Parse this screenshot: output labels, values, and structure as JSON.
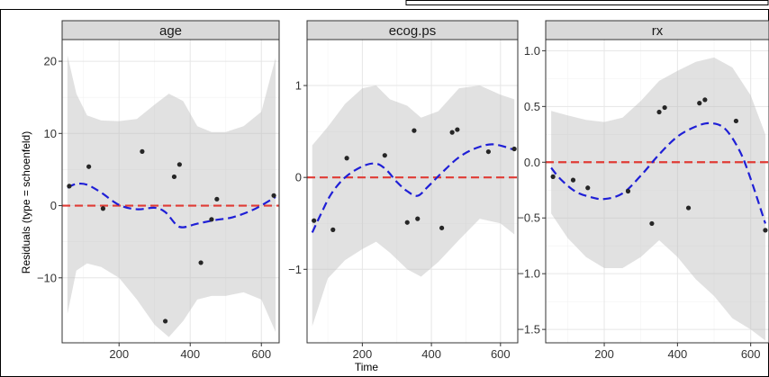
{
  "chart_data": {
    "type": "scatter",
    "ylabel": "Residuals (type = schoenfeld)",
    "xlabel": "Time",
    "xlim": [
      40,
      650
    ],
    "xticks": [
      200,
      400,
      600
    ],
    "panels": [
      {
        "title": "age",
        "ylim": [
          -19,
          23
        ],
        "yticks": [
          -10,
          0,
          10,
          20
        ],
        "ytick_labels": [
          "−10",
          "0",
          "10",
          "20"
        ],
        "points": [
          {
            "x": 60,
            "y": 2.7
          },
          {
            "x": 115,
            "y": 5.4
          },
          {
            "x": 155,
            "y": -0.4
          },
          {
            "x": 265,
            "y": 7.5
          },
          {
            "x": 330,
            "y": -16
          },
          {
            "x": 355,
            "y": 4.0
          },
          {
            "x": 370,
            "y": 5.7
          },
          {
            "x": 430,
            "y": -7.9
          },
          {
            "x": 460,
            "y": -1.9
          },
          {
            "x": 475,
            "y": 0.9
          },
          {
            "x": 635,
            "y": 1.4
          }
        ],
        "smooth": [
          {
            "x": 55,
            "y": 2.5
          },
          {
            "x": 80,
            "y": 3.0
          },
          {
            "x": 110,
            "y": 2.9
          },
          {
            "x": 150,
            "y": 1.8
          },
          {
            "x": 200,
            "y": 0.1
          },
          {
            "x": 250,
            "y": -0.5
          },
          {
            "x": 300,
            "y": -0.3
          },
          {
            "x": 330,
            "y": -0.9
          },
          {
            "x": 360,
            "y": -2.6
          },
          {
            "x": 380,
            "y": -3.0
          },
          {
            "x": 420,
            "y": -2.5
          },
          {
            "x": 470,
            "y": -2.0
          },
          {
            "x": 520,
            "y": -1.6
          },
          {
            "x": 580,
            "y": -0.5
          },
          {
            "x": 640,
            "y": 1.2
          }
        ],
        "band_upper": [
          {
            "x": 55,
            "y": 20.8
          },
          {
            "x": 80,
            "y": 15.5
          },
          {
            "x": 110,
            "y": 12.5
          },
          {
            "x": 150,
            "y": 11.8
          },
          {
            "x": 200,
            "y": 11.7
          },
          {
            "x": 250,
            "y": 12.0
          },
          {
            "x": 300,
            "y": 14.0
          },
          {
            "x": 340,
            "y": 15.5
          },
          {
            "x": 380,
            "y": 14.5
          },
          {
            "x": 420,
            "y": 11.0
          },
          {
            "x": 460,
            "y": 10.2
          },
          {
            "x": 500,
            "y": 10.2
          },
          {
            "x": 550,
            "y": 11.0
          },
          {
            "x": 600,
            "y": 13.0
          },
          {
            "x": 640,
            "y": 20.5
          }
        ],
        "band_lower": [
          {
            "x": 55,
            "y": -15.0
          },
          {
            "x": 80,
            "y": -9.0
          },
          {
            "x": 110,
            "y": -8.0
          },
          {
            "x": 150,
            "y": -8.5
          },
          {
            "x": 200,
            "y": -10.0
          },
          {
            "x": 250,
            "y": -13.0
          },
          {
            "x": 300,
            "y": -16.5
          },
          {
            "x": 340,
            "y": -18.2
          },
          {
            "x": 380,
            "y": -16.0
          },
          {
            "x": 420,
            "y": -13.0
          },
          {
            "x": 460,
            "y": -12.5
          },
          {
            "x": 500,
            "y": -12.5
          },
          {
            "x": 550,
            "y": -12.0
          },
          {
            "x": 600,
            "y": -13.0
          },
          {
            "x": 640,
            "y": -17.5
          }
        ]
      },
      {
        "title": "ecog.ps",
        "ylim": [
          -1.8,
          1.5
        ],
        "yticks": [
          -1,
          0,
          1
        ],
        "ytick_labels": [
          "−1",
          "0",
          "1"
        ],
        "points": [
          {
            "x": 60,
            "y": -0.47
          },
          {
            "x": 115,
            "y": -0.57
          },
          {
            "x": 155,
            "y": 0.21
          },
          {
            "x": 265,
            "y": 0.24
          },
          {
            "x": 330,
            "y": -0.49
          },
          {
            "x": 350,
            "y": 0.51
          },
          {
            "x": 360,
            "y": -0.45
          },
          {
            "x": 430,
            "y": -0.55
          },
          {
            "x": 460,
            "y": 0.49
          },
          {
            "x": 475,
            "y": 0.52
          },
          {
            "x": 565,
            "y": 0.28
          },
          {
            "x": 640,
            "y": 0.31
          }
        ],
        "smooth": [
          {
            "x": 55,
            "y": -0.6
          },
          {
            "x": 80,
            "y": -0.4
          },
          {
            "x": 110,
            "y": -0.18
          },
          {
            "x": 150,
            "y": 0.0
          },
          {
            "x": 200,
            "y": 0.12
          },
          {
            "x": 240,
            "y": 0.15
          },
          {
            "x": 270,
            "y": 0.08
          },
          {
            "x": 300,
            "y": -0.05
          },
          {
            "x": 330,
            "y": -0.15
          },
          {
            "x": 360,
            "y": -0.2
          },
          {
            "x": 390,
            "y": -0.1
          },
          {
            "x": 430,
            "y": 0.05
          },
          {
            "x": 480,
            "y": 0.22
          },
          {
            "x": 530,
            "y": 0.32
          },
          {
            "x": 580,
            "y": 0.36
          },
          {
            "x": 640,
            "y": 0.3
          }
        ],
        "band_upper": [
          {
            "x": 55,
            "y": 0.35
          },
          {
            "x": 100,
            "y": 0.55
          },
          {
            "x": 150,
            "y": 0.8
          },
          {
            "x": 200,
            "y": 0.97
          },
          {
            "x": 240,
            "y": 1.0
          },
          {
            "x": 280,
            "y": 0.85
          },
          {
            "x": 330,
            "y": 0.78
          },
          {
            "x": 370,
            "y": 0.65
          },
          {
            "x": 420,
            "y": 0.72
          },
          {
            "x": 480,
            "y": 0.97
          },
          {
            "x": 540,
            "y": 1.0
          },
          {
            "x": 600,
            "y": 0.9
          },
          {
            "x": 640,
            "y": 0.85
          }
        ],
        "band_lower": [
          {
            "x": 55,
            "y": -1.62
          },
          {
            "x": 100,
            "y": -1.1
          },
          {
            "x": 150,
            "y": -0.9
          },
          {
            "x": 200,
            "y": -0.78
          },
          {
            "x": 240,
            "y": -0.7
          },
          {
            "x": 280,
            "y": -0.82
          },
          {
            "x": 330,
            "y": -1.0
          },
          {
            "x": 370,
            "y": -1.08
          },
          {
            "x": 420,
            "y": -0.92
          },
          {
            "x": 480,
            "y": -0.68
          },
          {
            "x": 540,
            "y": -0.45
          },
          {
            "x": 600,
            "y": -0.5
          },
          {
            "x": 640,
            "y": -0.62
          }
        ]
      },
      {
        "title": "rx",
        "ylim": [
          -1.62,
          1.1
        ],
        "yticks": [
          -1.5,
          -1.0,
          -0.5,
          0.0,
          0.5,
          1.0
        ],
        "ytick_labels": [
          "−1.5",
          "−1.0",
          "−0.5",
          "0.0",
          "0.5",
          "1.0"
        ],
        "points": [
          {
            "x": 60,
            "y": -0.13
          },
          {
            "x": 115,
            "y": -0.16
          },
          {
            "x": 155,
            "y": -0.23
          },
          {
            "x": 265,
            "y": -0.26
          },
          {
            "x": 330,
            "y": -0.55
          },
          {
            "x": 350,
            "y": 0.45
          },
          {
            "x": 365,
            "y": 0.49
          },
          {
            "x": 430,
            "y": -0.41
          },
          {
            "x": 460,
            "y": 0.53
          },
          {
            "x": 475,
            "y": 0.56
          },
          {
            "x": 560,
            "y": 0.37
          },
          {
            "x": 640,
            "y": -0.61
          }
        ],
        "smooth": [
          {
            "x": 55,
            "y": -0.05
          },
          {
            "x": 80,
            "y": -0.15
          },
          {
            "x": 120,
            "y": -0.26
          },
          {
            "x": 160,
            "y": -0.31
          },
          {
            "x": 200,
            "y": -0.33
          },
          {
            "x": 250,
            "y": -0.28
          },
          {
            "x": 300,
            "y": -0.12
          },
          {
            "x": 350,
            "y": 0.07
          },
          {
            "x": 400,
            "y": 0.23
          },
          {
            "x": 450,
            "y": 0.32
          },
          {
            "x": 490,
            "y": 0.35
          },
          {
            "x": 530,
            "y": 0.3
          },
          {
            "x": 570,
            "y": 0.1
          },
          {
            "x": 600,
            "y": -0.15
          },
          {
            "x": 640,
            "y": -0.55
          }
        ],
        "band_upper": [
          {
            "x": 55,
            "y": 0.46
          },
          {
            "x": 100,
            "y": 0.42
          },
          {
            "x": 150,
            "y": 0.38
          },
          {
            "x": 200,
            "y": 0.36
          },
          {
            "x": 250,
            "y": 0.4
          },
          {
            "x": 300,
            "y": 0.55
          },
          {
            "x": 350,
            "y": 0.73
          },
          {
            "x": 400,
            "y": 0.82
          },
          {
            "x": 450,
            "y": 0.9
          },
          {
            "x": 500,
            "y": 0.94
          },
          {
            "x": 550,
            "y": 0.85
          },
          {
            "x": 600,
            "y": 0.6
          },
          {
            "x": 640,
            "y": 0.25
          }
        ],
        "band_lower": [
          {
            "x": 55,
            "y": -0.46
          },
          {
            "x": 100,
            "y": -0.68
          },
          {
            "x": 150,
            "y": -0.85
          },
          {
            "x": 200,
            "y": -0.95
          },
          {
            "x": 250,
            "y": -0.95
          },
          {
            "x": 300,
            "y": -0.85
          },
          {
            "x": 350,
            "y": -0.7
          },
          {
            "x": 400,
            "y": -0.85
          },
          {
            "x": 450,
            "y": -1.05
          },
          {
            "x": 500,
            "y": -1.2
          },
          {
            "x": 550,
            "y": -1.4
          },
          {
            "x": 600,
            "y": -1.5
          },
          {
            "x": 640,
            "y": -1.6
          }
        ]
      }
    ]
  }
}
